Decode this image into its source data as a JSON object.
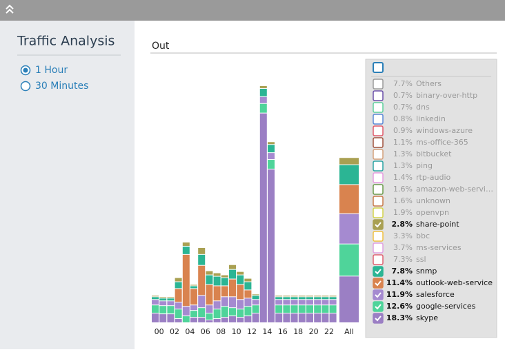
{
  "sidebar": {
    "title": "Traffic Analysis",
    "options": [
      {
        "label": "1 Hour",
        "selected": true
      },
      {
        "label": "30 Minutes",
        "selected": false
      }
    ]
  },
  "panel_title": "Out",
  "chart_data": {
    "type": "stacked-bar",
    "categories": [
      "00",
      null,
      "02",
      null,
      "04",
      null,
      "06",
      null,
      "08",
      null,
      "10",
      null,
      "12",
      null,
      "14",
      null,
      "16",
      null,
      "18",
      null,
      "20",
      null,
      "22",
      null
    ],
    "total_label": "All",
    "ylim": [
      0,
      350
    ],
    "series": [
      {
        "color": "#9b7fc4",
        "values": [
          14,
          13,
          13,
          6,
          0,
          8,
          8,
          4,
          6,
          8,
          10,
          8,
          10,
          14,
          307,
          225,
          14,
          14,
          14,
          14,
          14,
          14,
          14,
          14
        ]
      },
      {
        "color": "#4fd49a",
        "values": [
          12,
          12,
          12,
          14,
          10,
          10,
          14,
          10,
          14,
          16,
          12,
          12,
          14,
          12,
          14,
          14,
          12,
          12,
          12,
          12,
          12,
          12,
          12,
          12
        ]
      },
      {
        "color": "#a58ad0",
        "values": [
          8,
          7,
          7,
          10,
          14,
          8,
          18,
          12,
          12,
          14,
          16,
          14,
          12,
          8,
          10,
          10,
          8,
          8,
          8,
          8,
          8,
          8,
          8,
          8
        ]
      },
      {
        "color": "#d9834f",
        "values": [
          0,
          0,
          0,
          20,
          76,
          24,
          44,
          30,
          22,
          16,
          26,
          22,
          12,
          0,
          0,
          0,
          0,
          0,
          0,
          0,
          0,
          0,
          0,
          0
        ]
      },
      {
        "color": "#2bb594",
        "values": [
          4,
          4,
          4,
          10,
          12,
          4,
          16,
          14,
          14,
          12,
          14,
          14,
          12,
          6,
          12,
          12,
          4,
          4,
          4,
          4,
          4,
          4,
          4,
          4
        ]
      },
      {
        "color": "#a9a052",
        "values": [
          2,
          2,
          2,
          6,
          6,
          2,
          10,
          6,
          5,
          4,
          7,
          5,
          5,
          2,
          4,
          4,
          2,
          2,
          2,
          2,
          2,
          2,
          2,
          2
        ]
      }
    ]
  },
  "legend": [
    {
      "pct": {
        "value": 7.7,
        "label": "7.7%"
      },
      "name": "Others",
      "color": "#9a9a9a",
      "checked": false
    },
    {
      "pct": {
        "value": 0.7,
        "label": "0.7%"
      },
      "name": "binary-over-http",
      "color": "#6a4fa8",
      "checked": false
    },
    {
      "pct": {
        "value": 0.7,
        "label": "0.7%"
      },
      "name": "dns",
      "color": "#5ccf9c",
      "checked": false
    },
    {
      "pct": {
        "value": 0.8,
        "label": "0.8%"
      },
      "name": "linkedin",
      "color": "#5a88d6",
      "checked": false
    },
    {
      "pct": {
        "value": 0.9,
        "label": "0.9%"
      },
      "name": "windows-azure",
      "color": "#e05a6a",
      "checked": false
    },
    {
      "pct": {
        "value": 1.1,
        "label": "1.1%"
      },
      "name": "ms-office-365",
      "color": "#a0523d",
      "checked": false
    },
    {
      "pct": {
        "value": 1.3,
        "label": "1.3%"
      },
      "name": "bitbucket",
      "color": "#d4a07a",
      "checked": false
    },
    {
      "pct": {
        "value": 1.3,
        "label": "1.3%"
      },
      "name": "ping",
      "color": "#2aa3a3",
      "checked": false
    },
    {
      "pct": {
        "value": 1.4,
        "label": "1.4%"
      },
      "name": "rtp-audio",
      "color": "#e59be0",
      "checked": false
    },
    {
      "pct": {
        "value": 1.6,
        "label": "1.6%"
      },
      "name": "amazon-web-servi…",
      "color": "#6a9a4a",
      "checked": false
    },
    {
      "pct": {
        "value": 1.6,
        "label": "1.6%"
      },
      "name": "unknown",
      "color": "#c87a4a",
      "checked": false
    },
    {
      "pct": {
        "value": 1.9,
        "label": "1.9%"
      },
      "name": "openvpn",
      "color": "#d4d44a",
      "checked": false
    },
    {
      "pct": {
        "value": 2.8,
        "label": "2.8%"
      },
      "name": "share-point",
      "color": "#a9a052",
      "checked": true
    },
    {
      "pct": {
        "value": 3.3,
        "label": "3.3%"
      },
      "name": "bbc",
      "color": "#f0c040",
      "checked": false
    },
    {
      "pct": {
        "value": 3.7,
        "label": "3.7%"
      },
      "name": "ms-services",
      "color": "#e0a0e0",
      "checked": false
    },
    {
      "pct": {
        "value": 7.3,
        "label": "7.3%"
      },
      "name": "ssl",
      "color": "#e06070",
      "checked": false
    },
    {
      "pct": {
        "value": 7.8,
        "label": "7.8%"
      },
      "name": "snmp",
      "color": "#2bb594",
      "checked": true
    },
    {
      "pct": {
        "value": 11.4,
        "label": "11.4%"
      },
      "name": "outlook-web-service",
      "color": "#d9834f",
      "checked": true
    },
    {
      "pct": {
        "value": 11.9,
        "label": "11.9%"
      },
      "name": "salesforce",
      "color": "#a58ad0",
      "checked": true
    },
    {
      "pct": {
        "value": 12.6,
        "label": "12.6%"
      },
      "name": "google-services",
      "color": "#4fd49a",
      "checked": true
    },
    {
      "pct": {
        "value": 18.3,
        "label": "18.3%"
      },
      "name": "skype",
      "color": "#9b7fc4",
      "checked": true
    }
  ]
}
